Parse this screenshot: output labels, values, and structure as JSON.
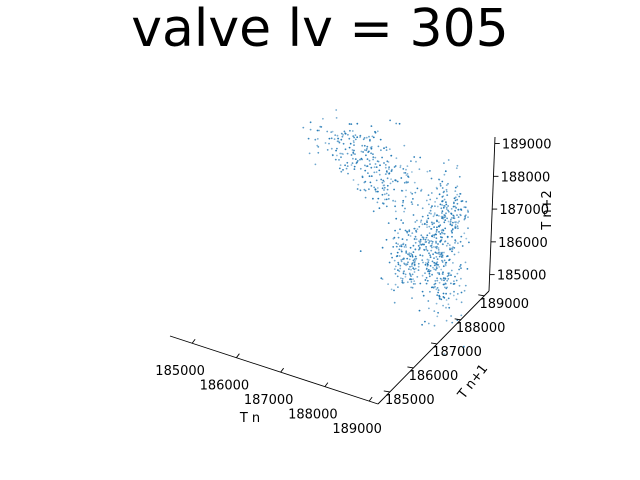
{
  "chart_data": {
    "type": "scatter",
    "title": "valve lv = 305",
    "xlabel": "T n",
    "ylabel": "T n+1",
    "zlabel": "T n+2",
    "xlim": [
      184500,
      189200
    ],
    "ylim": [
      184500,
      189200
    ],
    "zlim": [
      184500,
      189200
    ],
    "xticks": [
      "185000",
      "186000",
      "187000",
      "188000",
      "189000"
    ],
    "yticks": [
      "185000",
      "186000",
      "187000",
      "188000",
      "189000"
    ],
    "zticks": [
      "185000",
      "186000",
      "187000",
      "188000",
      "189000"
    ],
    "grid": false,
    "marker_color": "#1f77b4",
    "clusters": [
      {
        "name": "",
        "center": [
          186300,
          188700,
          188600
        ],
        "spread": [
          500,
          300,
          300
        ],
        "count": 150
      },
      {
        "name": "",
        "center": [
          187200,
          188600,
          187800
        ],
        "spread": [
          400,
          300,
          300
        ],
        "count": 140
      },
      {
        "name": "",
        "center": [
          188600,
          188700,
          187400
        ],
        "spread": [
          250,
          200,
          600
        ],
        "count": 170
      },
      {
        "name": "",
        "center": [
          188600,
          188300,
          185500
        ],
        "spread": [
          250,
          200,
          900
        ],
        "count": 220
      },
      {
        "name": "",
        "center": [
          189000,
          186200,
          188000
        ],
        "spread": [
          150,
          400,
          500
        ],
        "count": 140
      },
      {
        "name": "",
        "center": [
          188500,
          187800,
          187200
        ],
        "spread": [
          400,
          400,
          400
        ],
        "count": 120
      }
    ]
  }
}
